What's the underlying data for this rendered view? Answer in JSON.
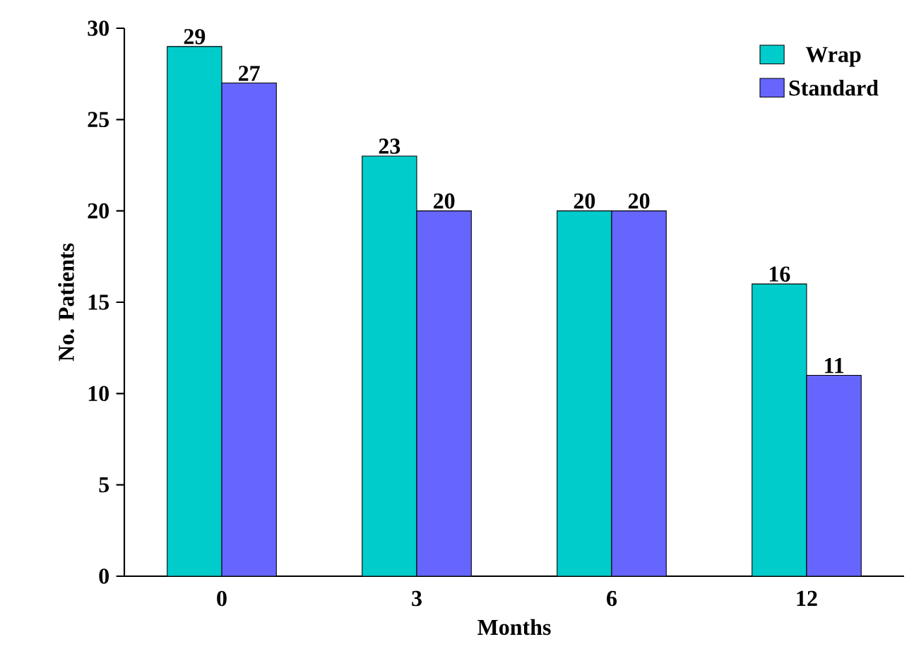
{
  "chart_data": {
    "type": "bar",
    "xlabel": "Months",
    "ylabel": "No. Patients",
    "categories": [
      "0",
      "3",
      "6",
      "12"
    ],
    "series": [
      {
        "name": "Wrap",
        "color": "#00cccc",
        "values": [
          29,
          23,
          20,
          16
        ]
      },
      {
        "name": "Standard",
        "color": "#6666ff",
        "values": [
          27,
          20,
          20,
          11
        ]
      }
    ],
    "ylim": [
      0,
      30
    ],
    "yticks": [
      0,
      5,
      10,
      15,
      20,
      25,
      30
    ],
    "data_labels": true,
    "legend": "top right",
    "grid": false
  }
}
